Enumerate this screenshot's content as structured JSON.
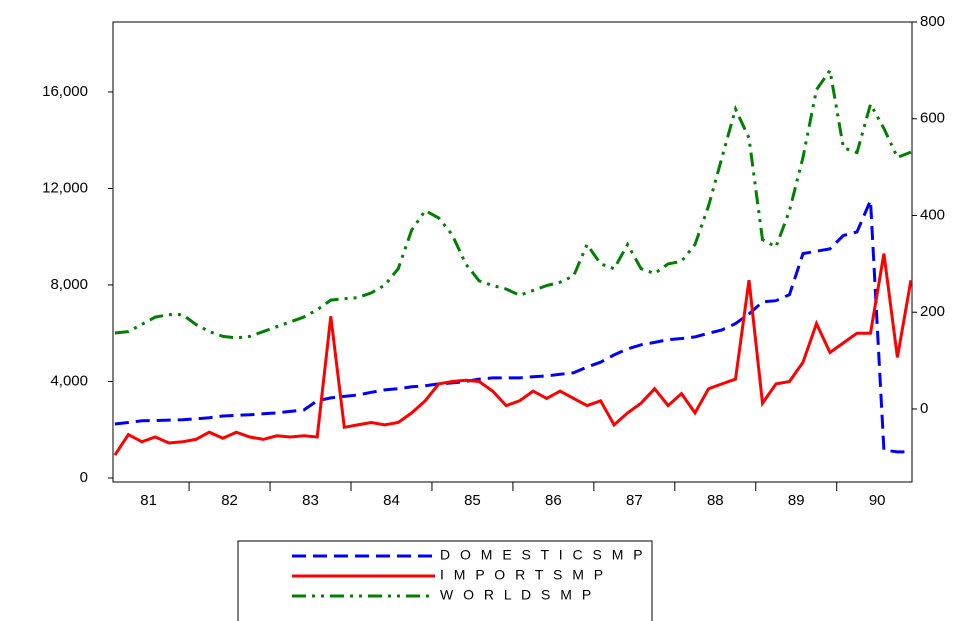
{
  "chart_data": {
    "type": "line",
    "x": [
      1981.083,
      1981.25,
      1981.417,
      1981.583,
      1981.75,
      1981.917,
      1982.083,
      1982.25,
      1982.417,
      1982.583,
      1982.75,
      1982.917,
      1983.083,
      1983.25,
      1983.417,
      1983.583,
      1983.75,
      1983.917,
      1984.083,
      1984.25,
      1984.417,
      1984.583,
      1984.75,
      1984.917,
      1985.083,
      1985.25,
      1985.417,
      1985.583,
      1985.75,
      1985.917,
      1986.083,
      1986.25,
      1986.417,
      1986.583,
      1986.75,
      1986.917,
      1987.083,
      1987.25,
      1987.417,
      1987.583,
      1987.75,
      1987.917,
      1988.083,
      1988.25,
      1988.417,
      1988.583,
      1988.75,
      1988.917,
      1989.083,
      1989.25,
      1989.417,
      1989.583,
      1989.75,
      1989.917,
      1990.083,
      1990.25,
      1990.417,
      1990.583,
      1990.75,
      1990.917
    ],
    "xlim": [
      1981.06,
      1990.93
    ],
    "xticks": [
      {
        "value": 1981.5,
        "label": "81"
      },
      {
        "value": 1982.5,
        "label": "82"
      },
      {
        "value": 1983.5,
        "label": "83"
      },
      {
        "value": 1984.5,
        "label": "84"
      },
      {
        "value": 1985.5,
        "label": "85"
      },
      {
        "value": 1986.5,
        "label": "86"
      },
      {
        "value": 1987.5,
        "label": "87"
      },
      {
        "value": 1988.5,
        "label": "88"
      },
      {
        "value": 1989.5,
        "label": "89"
      },
      {
        "value": 1990.5,
        "label": "90"
      }
    ],
    "ylim": [
      -166,
      18900
    ],
    "yticks": [
      0,
      {
        "value": 4000,
        "label": "4,000"
      },
      {
        "value": 8000,
        "label": "8,000"
      },
      {
        "value": 12000,
        "label": "12,000"
      },
      {
        "value": 16000,
        "label": "16,000"
      }
    ],
    "y2lim": [
      -151,
      800
    ],
    "y2ticks": [
      0,
      200,
      400,
      600,
      800
    ],
    "series": [
      {
        "name": "D O M E S T I C S M P",
        "color": "#0000ff",
        "line_style": "dashed",
        "values": [
          2240,
          2300,
          2370,
          2380,
          2400,
          2410,
          2450,
          2500,
          2570,
          2600,
          2620,
          2660,
          2700,
          2760,
          2820,
          3200,
          3320,
          3380,
          3440,
          3550,
          3650,
          3700,
          3780,
          3820,
          3900,
          3940,
          4000,
          4100,
          4150,
          4150,
          4150,
          4200,
          4230,
          4300,
          4360,
          4600,
          4800,
          5100,
          5350,
          5520,
          5620,
          5730,
          5780,
          5850,
          6000,
          6140,
          6400,
          6800,
          7300,
          7350,
          7600,
          9300,
          9400,
          9500,
          10050,
          10200,
          11500,
          1160,
          1080,
          1080
        ]
      },
      {
        "name": "I M P O R T S M P",
        "color": "#ff0000",
        "line_style": "solid",
        "values": [
          950,
          1800,
          1500,
          1700,
          1450,
          1500,
          1600,
          1900,
          1650,
          1900,
          1700,
          1600,
          1750,
          1700,
          1750,
          1700,
          6700,
          2100,
          2200,
          2300,
          2200,
          2300,
          2700,
          3200,
          3900,
          4000,
          4050,
          4000,
          3600,
          3000,
          3200,
          3600,
          3300,
          3600,
          3300,
          3000,
          3200,
          2200,
          2700,
          3100,
          3700,
          3000,
          3500,
          2700,
          3700,
          3900,
          4100,
          8200,
          3100,
          3900,
          4000,
          4800,
          6400,
          5200,
          5600,
          6000,
          6000,
          9300,
          5000,
          8200
        ]
      },
      {
        "name": "W O R L D S M P",
        "color": "#008000",
        "line_style": "dash-dot-dot",
        "axis": "y2",
        "values": [
          157,
          160,
          175,
          190,
          195,
          195,
          175,
          160,
          150,
          147,
          150,
          160,
          170,
          180,
          190,
          205,
          225,
          228,
          230,
          240,
          256,
          290,
          370,
          410,
          395,
          360,
          300,
          265,
          255,
          248,
          235,
          245,
          255,
          262,
          275,
          340,
          300,
          290,
          340,
          290,
          280,
          300,
          305,
          340,
          420,
          520,
          620,
          560,
          350,
          335,
          410,
          520,
          660,
          700,
          540,
          530,
          630,
          580,
          520,
          531
        ]
      }
    ]
  }
}
